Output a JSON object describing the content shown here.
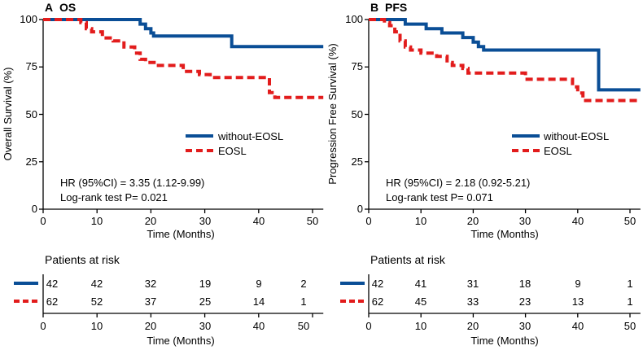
{
  "colors": {
    "without": "#0a4e96",
    "eosl": "#e21c1c",
    "axis": "#000000"
  },
  "chart_data": [
    {
      "type": "line",
      "panel_letter": "A",
      "title": "OS",
      "xlabel": "Time (Months)",
      "ylabel": "Overall Survival (%)",
      "xlim": [
        0,
        52
      ],
      "ylim": [
        0,
        100
      ],
      "xticks": [
        "0",
        "10",
        "20",
        "30",
        "40",
        "50"
      ],
      "yticks": [
        "0",
        "25",
        "50",
        "75",
        "100"
      ],
      "annotation_hr": "HR (95%CI) = 3.35 (1.12-9.99)",
      "annotation_p": "Log-rank test P= 0.021",
      "legend": [
        "without-EOSL",
        "EOSL"
      ],
      "series": [
        {
          "name": "without-EOSL",
          "style": "solid",
          "points": [
            [
              0,
              100
            ],
            [
              18,
              100
            ],
            [
              18,
              97.6
            ],
            [
              19,
              97.6
            ],
            [
              19,
              95.2
            ],
            [
              20,
              95.2
            ],
            [
              20,
              92.9
            ],
            [
              20.5,
              92.9
            ],
            [
              20.5,
              91.3
            ],
            [
              35,
              91.3
            ],
            [
              35,
              85.7
            ],
            [
              52,
              85.7
            ]
          ]
        },
        {
          "name": "EOSL",
          "style": "dashed",
          "points": [
            [
              0,
              100
            ],
            [
              7,
              100
            ],
            [
              7,
              98.4
            ],
            [
              8,
              98.4
            ],
            [
              8,
              95.2
            ],
            [
              9,
              95.2
            ],
            [
              9,
              93.5
            ],
            [
              11,
              93.5
            ],
            [
              11,
              90.3
            ],
            [
              13,
              90.3
            ],
            [
              13,
              88.7
            ],
            [
              15,
              88.7
            ],
            [
              15,
              85.5
            ],
            [
              17,
              85.5
            ],
            [
              17,
              82.3
            ],
            [
              18,
              82.3
            ],
            [
              18,
              79
            ],
            [
              19,
              79
            ],
            [
              19,
              77.4
            ],
            [
              21,
              77.4
            ],
            [
              21,
              75.8
            ],
            [
              26,
              75.8
            ],
            [
              26,
              72.6
            ],
            [
              29,
              72.6
            ],
            [
              29,
              71
            ],
            [
              31,
              71
            ],
            [
              31,
              69.4
            ],
            [
              42,
              69.4
            ],
            [
              42,
              61.5
            ],
            [
              43,
              61.5
            ],
            [
              43,
              58.9
            ],
            [
              52,
              58.9
            ]
          ]
        }
      ],
      "risk_table": {
        "title": "Patients at risk",
        "xlabel": "Time (Months)",
        "xticks": [
          "0",
          "10",
          "20",
          "30",
          "40",
          "50"
        ],
        "rows": [
          {
            "group": "without-EOSL",
            "values": [
              "42",
              "42",
              "32",
              "19",
              "9",
              "2"
            ]
          },
          {
            "group": "EOSL",
            "values": [
              "62",
              "52",
              "37",
              "25",
              "14",
              "1"
            ]
          }
        ]
      }
    },
    {
      "type": "line",
      "panel_letter": "B",
      "title": "PFS",
      "xlabel": "Time (Months)",
      "ylabel": "Progression Free Survival (%)",
      "xlim": [
        0,
        52
      ],
      "ylim": [
        0,
        100
      ],
      "xticks": [
        "0",
        "10",
        "20",
        "30",
        "40",
        "50"
      ],
      "yticks": [
        "0",
        "25",
        "50",
        "75",
        "100"
      ],
      "annotation_hr": "HR (95%CI) = 2.18 (0.92-5.21)",
      "annotation_p": "Log-rank test P= 0.071",
      "legend": [
        "without-EOSL",
        "EOSL"
      ],
      "series": [
        {
          "name": "without-EOSL",
          "style": "solid",
          "points": [
            [
              0,
              100
            ],
            [
              7,
              100
            ],
            [
              7,
              97.6
            ],
            [
              11,
              97.6
            ],
            [
              11,
              95.2
            ],
            [
              14,
              95.2
            ],
            [
              14,
              92.9
            ],
            [
              18,
              92.9
            ],
            [
              18,
              90.5
            ],
            [
              20,
              90.5
            ],
            [
              20,
              88.1
            ],
            [
              21,
              88.1
            ],
            [
              21,
              85.7
            ],
            [
              22,
              85.7
            ],
            [
              22,
              83.9
            ],
            [
              44,
              83.9
            ],
            [
              44,
              62.9
            ],
            [
              52,
              62.9
            ]
          ]
        },
        {
          "name": "EOSL",
          "style": "dashed",
          "points": [
            [
              0,
              100
            ],
            [
              3,
              100
            ],
            [
              3,
              98.4
            ],
            [
              4,
              98.4
            ],
            [
              4,
              96.8
            ],
            [
              5,
              96.8
            ],
            [
              5,
              93.5
            ],
            [
              6,
              93.5
            ],
            [
              6,
              88.7
            ],
            [
              7,
              88.7
            ],
            [
              7,
              85.5
            ],
            [
              8,
              85.5
            ],
            [
              8,
              83.9
            ],
            [
              10,
              83.9
            ],
            [
              10,
              82.3
            ],
            [
              13,
              82.3
            ],
            [
              13,
              80.6
            ],
            [
              15,
              80.6
            ],
            [
              15,
              77.4
            ],
            [
              16,
              77.4
            ],
            [
              16,
              75.8
            ],
            [
              18,
              75.8
            ],
            [
              18,
              74.2
            ],
            [
              19,
              74.2
            ],
            [
              19,
              71.8
            ],
            [
              30,
              71.8
            ],
            [
              30,
              68.5
            ],
            [
              39,
              68.5
            ],
            [
              39,
              64.5
            ],
            [
              40,
              64.5
            ],
            [
              40,
              61.3
            ],
            [
              41,
              61.3
            ],
            [
              41,
              57.3
            ],
            [
              52,
              57.3
            ]
          ]
        }
      ],
      "risk_table": {
        "title": "Patients at risk",
        "xlabel": "Time (Months)",
        "xticks": [
          "0",
          "10",
          "20",
          "30",
          "40",
          "50"
        ],
        "rows": [
          {
            "group": "without-EOSL",
            "values": [
              "42",
              "41",
              "31",
              "18",
              "9",
              "1"
            ]
          },
          {
            "group": "EOSL",
            "values": [
              "62",
              "45",
              "33",
              "23",
              "13",
              "1"
            ]
          }
        ]
      }
    }
  ]
}
